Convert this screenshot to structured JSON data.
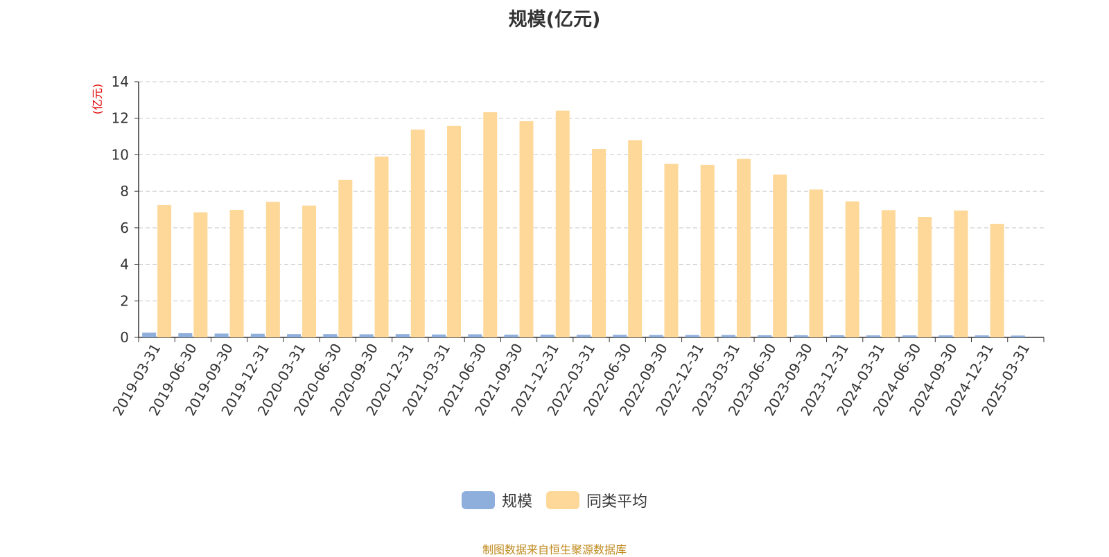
{
  "title": "规模(亿元)",
  "source_note": "制图数据来自恒生聚源数据库",
  "colors": {
    "series_scale": "#8eaedc",
    "series_avg": "#fdd899",
    "ylabel": "#e00000",
    "source": "#c08a1e"
  },
  "chart_data": {
    "type": "bar",
    "title": "规模(亿元)",
    "ylabel": "(亿元)",
    "xlabel": "",
    "ylim": [
      0,
      14
    ],
    "yticks": [
      0,
      2,
      4,
      6,
      8,
      10,
      12,
      14
    ],
    "grid": true,
    "legend_position": "bottom",
    "categories": [
      "2019-03-31",
      "2019-06-30",
      "2019-09-30",
      "2019-12-31",
      "2020-03-31",
      "2020-06-30",
      "2020-09-30",
      "2020-12-31",
      "2021-03-31",
      "2021-06-30",
      "2021-09-30",
      "2021-12-31",
      "2022-03-31",
      "2022-06-30",
      "2022-09-30",
      "2022-12-31",
      "2023-03-31",
      "2023-06-30",
      "2023-09-30",
      "2023-12-31",
      "2024-03-31",
      "2024-06-30",
      "2024-09-30",
      "2024-12-31",
      "2025-03-31"
    ],
    "series": [
      {
        "name": "规模",
        "values": [
          0.26,
          0.23,
          0.21,
          0.2,
          0.18,
          0.18,
          0.17,
          0.18,
          0.16,
          0.17,
          0.15,
          0.15,
          0.14,
          0.14,
          0.13,
          0.13,
          0.13,
          0.12,
          0.12,
          0.12,
          0.11,
          0.11,
          0.11,
          0.11,
          0.1
        ]
      },
      {
        "name": "同类平均",
        "values": [
          7.25,
          6.85,
          6.98,
          7.42,
          7.22,
          8.62,
          9.9,
          11.38,
          11.58,
          12.33,
          11.84,
          12.42,
          10.32,
          10.8,
          9.5,
          9.45,
          9.78,
          8.92,
          8.1,
          7.45,
          6.97,
          6.6,
          6.95,
          6.22,
          null
        ]
      }
    ]
  }
}
